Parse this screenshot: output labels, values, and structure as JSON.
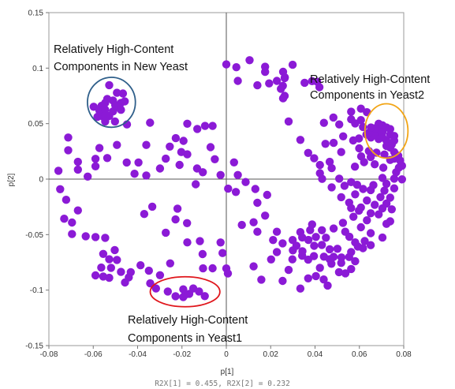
{
  "chart_data": {
    "type": "scatter",
    "xlabel": "p[1]",
    "ylabel": "p[2]",
    "xlim": [
      -0.08,
      0.08
    ],
    "ylim": [
      -0.15,
      0.15
    ],
    "x_ticks": [
      "-0.08",
      "-0.06",
      "-0.04",
      "-0.02",
      "0",
      "0.02",
      "0.04",
      "0.06",
      "0.08"
    ],
    "y_ticks": [
      "0.15",
      "0.1",
      "0.05",
      "0",
      "-0.05",
      "-0.1",
      "-0.15"
    ],
    "footer": "R2X[1] = 0.455, R2X[2] = 0.232",
    "grid": false,
    "colors": {
      "points": "#8b1ad6",
      "new_yeast_ellipse": "#2f5f8a",
      "yeast2_ellipse": "#f2a516",
      "yeast1_ellipse": "#e0161c"
    },
    "annotations": [
      {
        "id": "new-yeast",
        "lines": [
          "Relatively High-Content",
          "Components in New Yeast"
        ]
      },
      {
        "id": "yeast2",
        "lines": [
          "Relatively High-Content",
          "Components in Yeast2"
        ]
      },
      {
        "id": "yeast1",
        "lines": [
          "Relatively High-Content",
          "Components in Yeast1"
        ]
      }
    ],
    "ellipses": [
      {
        "id": "new-yeast",
        "cx": -0.0518,
        "cy": 0.0692,
        "rx": 0.0108,
        "ry": 0.0225
      },
      {
        "id": "yeast2",
        "cx": 0.0722,
        "cy": 0.0434,
        "rx": 0.0097,
        "ry": 0.0245
      },
      {
        "id": "yeast1",
        "cx": -0.0186,
        "cy": -0.1015,
        "rx": 0.0157,
        "ry": 0.0135
      }
    ],
    "points": [
      [
        -0.0528,
        0.0847
      ],
      [
        -0.0493,
        0.0778
      ],
      [
        -0.0466,
        0.0771
      ],
      [
        -0.0511,
        0.0708
      ],
      [
        -0.0475,
        0.0687
      ],
      [
        -0.0484,
        0.0646
      ],
      [
        -0.0537,
        0.0722
      ],
      [
        -0.0546,
        0.0687
      ],
      [
        -0.0563,
        0.066
      ],
      [
        -0.0598,
        0.0652
      ],
      [
        -0.0572,
        0.0617
      ],
      [
        -0.0546,
        0.0625
      ],
      [
        -0.0511,
        0.061
      ],
      [
        -0.0528,
        0.0569
      ],
      [
        -0.0555,
        0.0562
      ],
      [
        -0.0581,
        0.0561
      ],
      [
        -0.0501,
        0.0667
      ],
      [
        -0.0458,
        0.0701
      ],
      [
        -0.0475,
        0.0624
      ],
      [
        0.0687,
        0.0499
      ],
      [
        0.0704,
        0.0485
      ],
      [
        0.0722,
        0.0465
      ],
      [
        0.0739,
        0.0451
      ],
      [
        0.0687,
        0.0431
      ],
      [
        0.0704,
        0.0424
      ],
      [
        0.0739,
        0.0402
      ],
      [
        0.0757,
        0.0389
      ],
      [
        0.0669,
        0.0396
      ],
      [
        0.0652,
        0.0375
      ],
      [
        0.0687,
        0.0361
      ],
      [
        0.0722,
        0.0347
      ],
      [
        0.0757,
        0.0347
      ],
      [
        0.0722,
        0.0299
      ],
      [
        0.0739,
        0.0285
      ],
      [
        0.0669,
        0.0458
      ],
      [
        0.0643,
        0.0417
      ],
      [
        0.0652,
        0.0465
      ],
      [
        0.0746,
        0.0312
      ],
      [
        0.0704,
        0.0375
      ],
      [
        -0.0317,
        -0.0985
      ],
      [
        -0.0264,
        -0.1012
      ],
      [
        -0.0194,
        -0.0993
      ],
      [
        -0.0185,
        -0.1041
      ],
      [
        -0.0097,
        -0.1054
      ],
      [
        -0.0149,
        -0.0985
      ],
      [
        -0.0229,
        -0.1055
      ],
      [
        -0.0123,
        -0.1012
      ],
      [
        -0.0167,
        -0.1034
      ],
      [
        -0.0194,
        -0.1062
      ],
      [
        -0.0546,
        0.052
      ],
      [
        -0.0502,
        0.052
      ],
      [
        -0.0448,
        0.0493
      ],
      [
        -0.0344,
        0.0508
      ],
      [
        -0.0713,
        0.0375
      ],
      [
        -0.0713,
        0.026
      ],
      [
        -0.0669,
        0.0156
      ],
      [
        -0.0757,
        0.0075
      ],
      [
        -0.0669,
        0.0086
      ],
      [
        -0.059,
        0.0183
      ],
      [
        -0.0572,
        0.028
      ],
      [
        -0.0537,
        0.019
      ],
      [
        -0.059,
        0.0115
      ],
      [
        -0.0625,
        0.0023
      ],
      [
        -0.0493,
        0.0308
      ],
      [
        -0.0361,
        0.0308
      ],
      [
        -0.0449,
        0.015
      ],
      [
        -0.0396,
        0.015
      ],
      [
        -0.0414,
        0.0048
      ],
      [
        -0.0361,
        0.0033
      ],
      [
        -0.0299,
        0.0096
      ],
      [
        -0.0273,
        0.0184
      ],
      [
        -0.0255,
        0.0293
      ],
      [
        -0.0193,
        0.0345
      ],
      [
        -0.0211,
        0.0128
      ],
      [
        -0.0176,
        0.0223
      ],
      [
        -0.0132,
        0.0096
      ],
      [
        -0.0176,
        0.0499
      ],
      [
        -0.0131,
        0.0452
      ],
      [
        -0.0096,
        0.0479
      ],
      [
        -0.0062,
        0.0479
      ],
      [
        -0.0228,
        0.0369
      ],
      [
        -0.0203,
        0.0244
      ],
      [
        -0.0071,
        0.0288
      ],
      [
        -0.0052,
        0.0179
      ],
      [
        -0.0138,
        -0.0046
      ],
      [
        -0.0106,
        0.0062
      ],
      [
        -0.0026,
        0.0037
      ],
      [
        0.0035,
        0.0151
      ],
      [
        0.0052,
        0.0037
      ],
      [
        0.0008,
        -0.0086
      ],
      [
        -0.0749,
        -0.0091
      ],
      [
        -0.0722,
        -0.0186
      ],
      [
        -0.0731,
        -0.0357
      ],
      [
        -0.0696,
        -0.0391
      ],
      [
        -0.0669,
        -0.0282
      ],
      [
        -0.0696,
        -0.0495
      ],
      [
        -0.0634,
        -0.0515
      ],
      [
        -0.059,
        -0.0522
      ],
      [
        -0.0546,
        -0.0529
      ],
      [
        -0.0503,
        -0.0639
      ],
      [
        -0.0555,
        -0.0674
      ],
      [
        -0.0528,
        -0.0722
      ],
      [
        -0.0493,
        -0.0728
      ],
      [
        -0.052,
        -0.0799
      ],
      [
        -0.0564,
        -0.0797
      ],
      [
        -0.059,
        -0.0867
      ],
      [
        -0.0555,
        -0.0877
      ],
      [
        -0.0528,
        -0.0889
      ],
      [
        -0.0475,
        -0.0836
      ],
      [
        -0.0431,
        -0.0838
      ],
      [
        -0.0387,
        -0.0776
      ],
      [
        -0.0349,
        -0.0825
      ],
      [
        -0.0343,
        -0.0939
      ],
      [
        -0.0457,
        -0.0931
      ],
      [
        -0.044,
        -0.0885
      ],
      [
        -0.037,
        -0.0314
      ],
      [
        -0.0334,
        -0.0248
      ],
      [
        -0.022,
        -0.0266
      ],
      [
        -0.0229,
        -0.0363
      ],
      [
        -0.0177,
        -0.0397
      ],
      [
        -0.0273,
        -0.0483
      ],
      [
        -0.0176,
        -0.057
      ],
      [
        -0.0119,
        -0.0559
      ],
      [
        -0.0253,
        -0.0759
      ],
      [
        -0.0299,
        -0.0866
      ],
      [
        -0.0105,
        -0.0804
      ],
      [
        -0.0062,
        -0.0803
      ],
      [
        -0.0107,
        -0.0675
      ],
      [
        -0.0017,
        -0.0666
      ],
      [
        0.0,
        -0.0805
      ],
      [
        0.0007,
        -0.085
      ],
      [
        -0.0026,
        -0.0571
      ],
      [
        0.0043,
        -0.0116
      ],
      [
        0.0087,
        -0.0026
      ],
      [
        0.0131,
        -0.0089
      ],
      [
        0.014,
        -0.0213
      ],
      [
        0.0184,
        -0.0142
      ],
      [
        0.0175,
        -0.0329
      ],
      [
        0.0123,
        -0.0389
      ],
      [
        0.007,
        -0.0413
      ],
      [
        0.014,
        -0.0474
      ],
      [
        0.0228,
        -0.0474
      ],
      [
        0.0211,
        -0.0549
      ],
      [
        0.0254,
        -0.0579
      ],
      [
        0.0228,
        -0.0657
      ],
      [
        0.0202,
        -0.0724
      ],
      [
        0.0123,
        -0.0786
      ],
      [
        0.0298,
        -0.0723
      ],
      [
        0.0281,
        -0.0818
      ],
      [
        0.0254,
        -0.0917
      ],
      [
        0.0158,
        -0.0906
      ],
      [
        0.0334,
        -0.0986
      ],
      [
        0.0369,
        -0.0894
      ],
      [
        0.0404,
        -0.0874
      ],
      [
        0.0439,
        -0.0904
      ],
      [
        0.0457,
        -0.0959
      ],
      [
        0.0508,
        -0.0838
      ],
      [
        0.0474,
        -0.0763
      ],
      [
        0.0,
        0.1034
      ],
      [
        0.0045,
        0.1008
      ],
      [
        0.0052,
        0.0885
      ],
      [
        0.0105,
        0.1071
      ],
      [
        0.014,
        0.0845
      ],
      [
        0.0175,
        0.0966
      ],
      [
        0.0193,
        0.0862
      ],
      [
        0.0228,
        0.0885
      ],
      [
        0.0256,
        0.0967
      ],
      [
        0.0263,
        0.075
      ],
      [
        0.0263,
        0.0911
      ],
      [
        0.0299,
        0.103
      ],
      [
        0.0255,
        0.084
      ],
      [
        0.0264,
        0.0917
      ],
      [
        0.0246,
        0.0813
      ],
      [
        0.0256,
        0.0728
      ],
      [
        0.0175,
        0.1012
      ],
      [
        0.0353,
        0.0868
      ],
      [
        0.0387,
        0.0883
      ],
      [
        0.041,
        0.0877
      ],
      [
        0.042,
        0.0828
      ],
      [
        0.0281,
        0.052
      ],
      [
        0.0334,
        0.0353
      ],
      [
        0.0369,
        0.0236
      ],
      [
        0.0396,
        0.0188
      ],
      [
        0.0422,
        0.0127
      ],
      [
        0.0447,
        0.0318
      ],
      [
        0.044,
        0.0507
      ],
      [
        0.0483,
        0.0555
      ],
      [
        0.0509,
        0.0493
      ],
      [
        0.0527,
        0.0385
      ],
      [
        0.0484,
        0.0326
      ],
      [
        0.0518,
        0.0244
      ],
      [
        0.0466,
        0.0156
      ],
      [
        0.0422,
        0.0053
      ],
      [
        0.0432,
        0.0002
      ],
      [
        0.0475,
        0.0099
      ],
      [
        0.0509,
        0.0004
      ],
      [
        0.0533,
        -0.006
      ],
      [
        0.0475,
        -0.0074
      ],
      [
        0.0518,
        -0.0163
      ],
      [
        0.0554,
        -0.0212
      ],
      [
        0.0563,
        -0.0261
      ],
      [
        0.0598,
        -0.0284
      ],
      [
        0.0573,
        -0.0339
      ],
      [
        0.0526,
        -0.0394
      ],
      [
        0.0484,
        -0.0445
      ],
      [
        0.0536,
        -0.0474
      ],
      [
        0.0555,
        -0.052
      ],
      [
        0.0581,
        -0.057
      ],
      [
        0.0616,
        -0.0622
      ],
      [
        0.0651,
        -0.0595
      ],
      [
        0.0704,
        -0.0527
      ],
      [
        0.0651,
        -0.0487
      ],
      [
        0.0607,
        -0.0434
      ],
      [
        0.0634,
        -0.0371
      ],
      [
        0.0687,
        -0.0318
      ],
      [
        0.0563,
        0.0607
      ],
      [
        0.0607,
        0.0635
      ],
      [
        0.0634,
        0.0603
      ],
      [
        0.0563,
        0.0539
      ],
      [
        0.0607,
        0.0532
      ],
      [
        0.0581,
        0.0502
      ],
      [
        0.0616,
        0.047
      ],
      [
        0.0632,
        0.0402
      ],
      [
        0.0598,
        0.0366
      ],
      [
        0.0572,
        0.0348
      ],
      [
        0.0599,
        0.0277
      ],
      [
        0.0608,
        0.0205
      ],
      [
        0.0643,
        0.0253
      ],
      [
        0.0677,
        0.0239
      ],
      [
        0.0651,
        0.0199
      ],
      [
        0.0621,
        0.0153
      ],
      [
        0.058,
        0.0112
      ],
      [
        0.0669,
        0.0134
      ],
      [
        0.0708,
        0.0103
      ],
      [
        0.0739,
        0.0173
      ],
      [
        0.0713,
        0.0222
      ],
      [
        0.0757,
        0.0243
      ],
      [
        0.0757,
        0.0184
      ],
      [
        0.0784,
        0.0167
      ],
      [
        0.0775,
        0.0211
      ],
      [
        0.0778,
        0.0103
      ],
      [
        0.0792,
        0.012
      ],
      [
        0.0766,
        0.0062
      ],
      [
        0.0757,
        0.0004
      ],
      [
        0.0792,
        -0.0002
      ],
      [
        0.0704,
        0.0011
      ],
      [
        0.0722,
        -0.0043
      ],
      [
        0.0757,
        -0.0083
      ],
      [
        0.0713,
        -0.0104
      ],
      [
        0.0695,
        -0.0162
      ],
      [
        0.0739,
        -0.0167
      ],
      [
        0.0722,
        -0.022
      ],
      [
        0.0669,
        -0.0232
      ],
      [
        0.0634,
        -0.0193
      ],
      [
        0.0617,
        -0.0089
      ],
      [
        0.059,
        -0.0051
      ],
      [
        0.0563,
        -0.0027
      ],
      [
        0.0581,
        -0.0137
      ],
      [
        0.0651,
        -0.0099
      ],
      [
        0.0663,
        -0.0054
      ],
      [
        0.0704,
        -0.0264
      ],
      [
        0.0746,
        -0.0272
      ],
      [
        0.0651,
        -0.0308
      ],
      [
        0.0607,
        -0.0255
      ],
      [
        0.0739,
        -0.038
      ],
      [
        0.0722,
        -0.0403
      ],
      [
        0.0334,
        -0.0478
      ],
      [
        0.0342,
        -0.0525
      ],
      [
        0.0378,
        -0.046
      ],
      [
        0.0387,
        -0.0408
      ],
      [
        0.0404,
        -0.0521
      ],
      [
        0.0431,
        -0.0461
      ],
      [
        0.0449,
        -0.0528
      ],
      [
        0.037,
        -0.0548
      ],
      [
        0.0396,
        -0.0601
      ],
      [
        0.0431,
        -0.0593
      ],
      [
        0.0466,
        -0.0632
      ],
      [
        0.0501,
        -0.0628
      ],
      [
        0.044,
        -0.0699
      ],
      [
        0.0484,
        -0.07
      ],
      [
        0.0519,
        -0.0706
      ],
      [
        0.0554,
        -0.0702
      ],
      [
        0.0581,
        -0.074
      ],
      [
        0.0395,
        -0.0694
      ],
      [
        0.0342,
        -0.069
      ],
      [
        0.03,
        -0.0642
      ],
      [
        0.0563,
        -0.081
      ],
      [
        0.0537,
        -0.0849
      ],
      [
        0.0518,
        -0.0755
      ],
      [
        0.0466,
        -0.0722
      ],
      [
        0.0422,
        -0.0799
      ],
      [
        0.0369,
        -0.0726
      ],
      [
        0.0299,
        -0.0549
      ],
      [
        0.0316,
        -0.06
      ],
      [
        0.0343,
        -0.065
      ],
      [
        0.0563,
        -0.0657
      ],
      [
        0.0593,
        -0.0607
      ],
      [
        0.0624,
        -0.0558
      ]
    ]
  }
}
